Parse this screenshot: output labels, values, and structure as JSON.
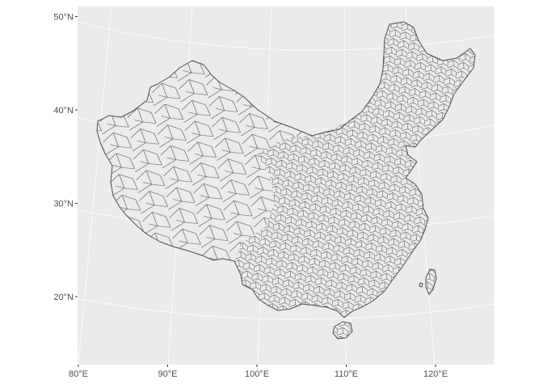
{
  "map": {
    "projection": "conic",
    "panel_background": "#ebebeb",
    "gridline_color": "#ffffff",
    "region_fill": "#ebebeb",
    "region_stroke": "#4d4d4d",
    "x_axis": {
      "ticks": [
        {
          "label": "80°E",
          "lon": 80
        },
        {
          "label": "90°E",
          "lon": 90
        },
        {
          "label": "100°E",
          "lon": 100
        },
        {
          "label": "110°E",
          "lon": 110
        },
        {
          "label": "120°E",
          "lon": 120
        }
      ]
    },
    "y_axis": {
      "ticks": [
        {
          "label": "50°N",
          "lat": 50
        },
        {
          "label": "40°N",
          "lat": 40
        },
        {
          "label": "30°N",
          "lat": 30
        },
        {
          "label": "20°N",
          "lat": 20
        }
      ]
    }
  }
}
